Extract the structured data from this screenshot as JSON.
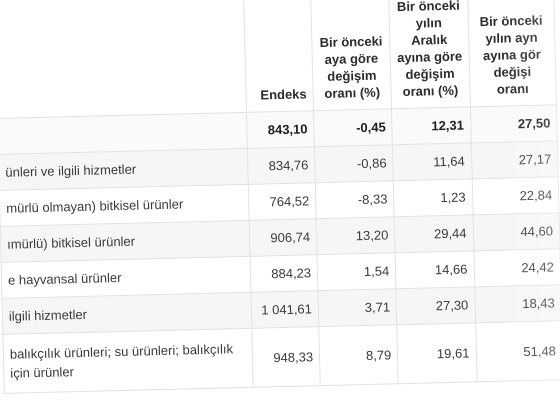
{
  "headers": {
    "endeks": "Endeks",
    "col2": [
      "Bir önceki",
      "aya göre",
      "değişim",
      "oranı (%)"
    ],
    "col3": [
      "Bir önceki",
      "yılın",
      "Aralık",
      "ayına göre",
      "değişim",
      "oranı (%)"
    ],
    "col4": [
      "Bir önceki",
      "yılın ayn",
      "ayına gör",
      "değişi",
      "oranı"
    ]
  },
  "rows": [
    {
      "name": "",
      "endeks": "843,10",
      "aylik": "-0,45",
      "aralik": "12,31",
      "yillik": "27,50"
    },
    {
      "name": "ünleri ve ilgili hizmetler",
      "endeks": "834,76",
      "aylik": "-0,86",
      "aralik": "11,64",
      "yillik": "27,17"
    },
    {
      "name": "mürlü olmayan) bitkisel ürünler",
      "endeks": "764,52",
      "aylik": "-8,33",
      "aralik": "1,23",
      "yillik": "22,84"
    },
    {
      "name": "ımürlü) bitkisel ürünler",
      "endeks": "906,74",
      "aylik": "13,20",
      "aralik": "29,44",
      "yillik": "44,60"
    },
    {
      "name": "e hayvansal ürünler",
      "endeks": "884,23",
      "aylik": "1,54",
      "aralik": "14,66",
      "yillik": "24,42"
    },
    {
      "name": "ilgili hizmetler",
      "endeks": "1 041,61",
      "aylik": "3,71",
      "aralik": "27,30",
      "yillik": "18,43"
    },
    {
      "name": "balıkçılık ürünleri; su ürünleri; balıkçılık için ürünler",
      "endeks": "948,33",
      "aylik": "8,79",
      "aralik": "19,61",
      "yillik": "51,48"
    }
  ]
}
